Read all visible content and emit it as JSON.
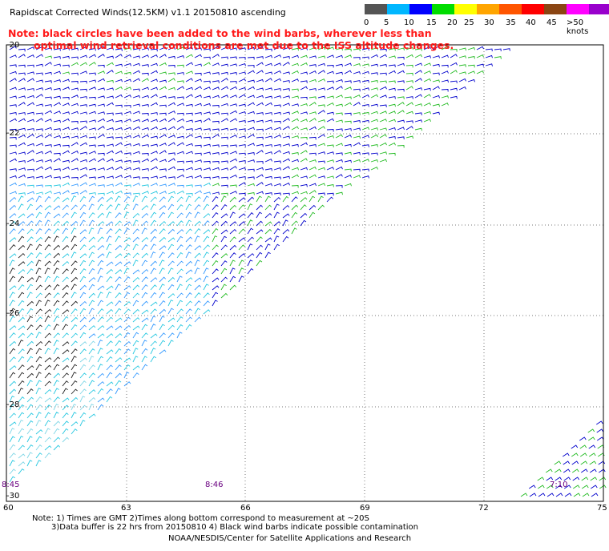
{
  "title": "Rapidscat Corrected Winds(12.5KM) v1.1 20150810 ascending",
  "note": {
    "line1": "Note: black circles have been added to the wind barbs, wherever less than",
    "line2": "optimal wind retrieval conditions are met due to the ISS altitude changes."
  },
  "scale": {
    "colors": [
      "#555555",
      "#00b7ff",
      "#0000ff",
      "#00dd00",
      "#ffff00",
      "#ffa500",
      "#ff5500",
      "#ff0000",
      "#8b4513",
      "#ff00ff",
      "#9900cc",
      "#330066"
    ],
    "labels": [
      "0",
      "5",
      "10",
      "15",
      "20",
      "25",
      "30",
      "35",
      "40",
      "45",
      ">50 knots"
    ]
  },
  "axes": {
    "lat_labels": [
      "-20",
      "-22",
      "-24",
      "-26",
      "-28",
      "-30"
    ],
    "lon_labels": [
      "60",
      "63",
      "66",
      "69",
      "72",
      "75"
    ]
  },
  "timestamps": [
    "8:45",
    "8:46",
    "7:10"
  ],
  "footer": {
    "line1": "Note: 1) Times are GMT 2)Times along bottom correspond to measurement at ~20S",
    "line2": "3)Data buffer is 22 hrs from 20150810 4) Black wind barbs indicate possible contamination",
    "line3": "NOAA/NESDIS/Center for Satellite Applications and Research"
  }
}
